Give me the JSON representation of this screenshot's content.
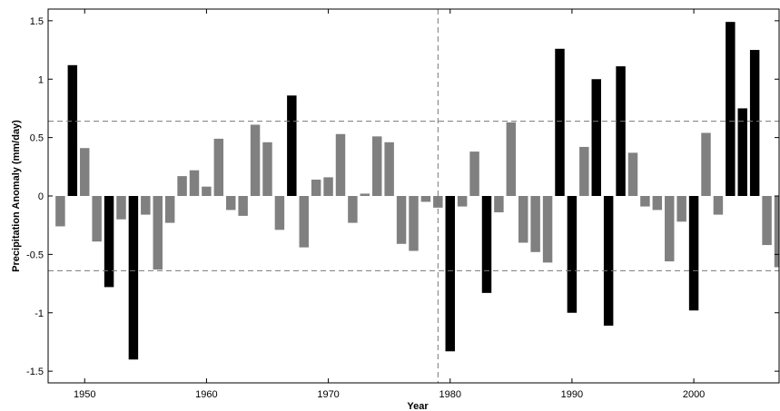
{
  "chart_data": {
    "type": "bar",
    "title": "",
    "xlabel": "Year",
    "ylabel": "Precipitation Anomaly (mm/day)",
    "xlim": [
      1947,
      2007
    ],
    "ylim": [
      -1.6,
      1.6
    ],
    "x_ticks": [
      1950,
      1960,
      1970,
      1980,
      1990,
      2000
    ],
    "y_ticks": [
      -1.5,
      -1,
      -0.5,
      0,
      0.5,
      1,
      1.5
    ],
    "x_tick_labels": [
      "1950",
      "1960",
      "1970",
      "1980",
      "1990",
      "2000"
    ],
    "y_tick_labels": [
      "-1.5",
      "-1",
      "-0.5",
      "0",
      "0.5",
      "1",
      "1.5"
    ],
    "grid": false,
    "legend": "none",
    "reference_lines": {
      "horizontal": [
        0.64,
        -0.64
      ],
      "vertical": [
        1979
      ],
      "style": "dashed"
    },
    "colors": {
      "extreme": "#000000",
      "normal": "#808080",
      "reference_line": "#777777"
    },
    "bars": [
      {
        "year": 1948,
        "value": -0.26,
        "extreme": false
      },
      {
        "year": 1949,
        "value": 1.12,
        "extreme": true
      },
      {
        "year": 1950,
        "value": 0.41,
        "extreme": false
      },
      {
        "year": 1951,
        "value": -0.39,
        "extreme": false
      },
      {
        "year": 1952,
        "value": -0.78,
        "extreme": true
      },
      {
        "year": 1953,
        "value": -0.2,
        "extreme": false
      },
      {
        "year": 1954,
        "value": -1.4,
        "extreme": true
      },
      {
        "year": 1955,
        "value": -0.16,
        "extreme": false
      },
      {
        "year": 1956,
        "value": -0.63,
        "extreme": false
      },
      {
        "year": 1957,
        "value": -0.23,
        "extreme": false
      },
      {
        "year": 1958,
        "value": 0.17,
        "extreme": false
      },
      {
        "year": 1959,
        "value": 0.22,
        "extreme": false
      },
      {
        "year": 1960,
        "value": 0.08,
        "extreme": false
      },
      {
        "year": 1961,
        "value": 0.49,
        "extreme": false
      },
      {
        "year": 1962,
        "value": -0.12,
        "extreme": false
      },
      {
        "year": 1963,
        "value": -0.17,
        "extreme": false
      },
      {
        "year": 1964,
        "value": 0.61,
        "extreme": false
      },
      {
        "year": 1965,
        "value": 0.46,
        "extreme": false
      },
      {
        "year": 1966,
        "value": -0.29,
        "extreme": false
      },
      {
        "year": 1967,
        "value": 0.86,
        "extreme": true
      },
      {
        "year": 1968,
        "value": -0.44,
        "extreme": false
      },
      {
        "year": 1969,
        "value": 0.14,
        "extreme": false
      },
      {
        "year": 1970,
        "value": 0.16,
        "extreme": false
      },
      {
        "year": 1971,
        "value": 0.53,
        "extreme": false
      },
      {
        "year": 1972,
        "value": -0.23,
        "extreme": false
      },
      {
        "year": 1973,
        "value": 0.02,
        "extreme": false
      },
      {
        "year": 1974,
        "value": 0.51,
        "extreme": false
      },
      {
        "year": 1975,
        "value": 0.46,
        "extreme": false
      },
      {
        "year": 1976,
        "value": -0.41,
        "extreme": false
      },
      {
        "year": 1977,
        "value": -0.47,
        "extreme": false
      },
      {
        "year": 1978,
        "value": -0.05,
        "extreme": false
      },
      {
        "year": 1979,
        "value": -0.1,
        "extreme": false
      },
      {
        "year": 1980,
        "value": -1.33,
        "extreme": true
      },
      {
        "year": 1981,
        "value": -0.09,
        "extreme": false
      },
      {
        "year": 1982,
        "value": 0.38,
        "extreme": false
      },
      {
        "year": 1983,
        "value": -0.83,
        "extreme": true
      },
      {
        "year": 1984,
        "value": -0.14,
        "extreme": false
      },
      {
        "year": 1985,
        "value": 0.63,
        "extreme": false
      },
      {
        "year": 1986,
        "value": -0.4,
        "extreme": false
      },
      {
        "year": 1987,
        "value": -0.48,
        "extreme": false
      },
      {
        "year": 1988,
        "value": -0.57,
        "extreme": false
      },
      {
        "year": 1989,
        "value": 1.26,
        "extreme": true
      },
      {
        "year": 1990,
        "value": -1.0,
        "extreme": true
      },
      {
        "year": 1991,
        "value": 0.42,
        "extreme": false
      },
      {
        "year": 1992,
        "value": 1.0,
        "extreme": true
      },
      {
        "year": 1993,
        "value": -1.11,
        "extreme": true
      },
      {
        "year": 1994,
        "value": 1.11,
        "extreme": true
      },
      {
        "year": 1995,
        "value": 0.37,
        "extreme": false
      },
      {
        "year": 1996,
        "value": -0.09,
        "extreme": false
      },
      {
        "year": 1997,
        "value": -0.12,
        "extreme": false
      },
      {
        "year": 1998,
        "value": -0.56,
        "extreme": false
      },
      {
        "year": 1999,
        "value": -0.22,
        "extreme": false
      },
      {
        "year": 2000,
        "value": -0.98,
        "extreme": true
      },
      {
        "year": 2001,
        "value": 0.54,
        "extreme": false
      },
      {
        "year": 2002,
        "value": -0.16,
        "extreme": false
      },
      {
        "year": 2003,
        "value": 1.49,
        "extreme": true
      },
      {
        "year": 2004,
        "value": 0.75,
        "extreme": true
      },
      {
        "year": 2005,
        "value": 1.25,
        "extreme": true
      },
      {
        "year": 2006,
        "value": -0.42,
        "extreme": false
      },
      {
        "year": 2007,
        "value": -0.61,
        "extreme": false
      }
    ]
  }
}
